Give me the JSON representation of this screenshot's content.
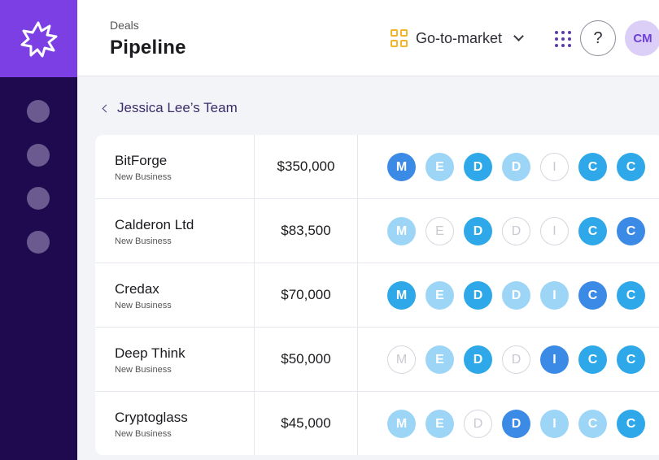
{
  "header": {
    "breadcrumb": "Deals",
    "title": "Pipeline",
    "workspace": "Go-to-market",
    "help_label": "?",
    "avatar_initials": "CM"
  },
  "back_link": {
    "label": "Jessica Lee’s Team"
  },
  "deals": [
    {
      "name": "BitForge",
      "type": "New Business",
      "amount": "$350,000",
      "stages": [
        {
          "letter": "M",
          "state": "dark"
        },
        {
          "letter": "E",
          "state": "light"
        },
        {
          "letter": "D",
          "state": "mid"
        },
        {
          "letter": "D",
          "state": "light"
        },
        {
          "letter": "I",
          "state": "empty"
        },
        {
          "letter": "C",
          "state": "mid"
        },
        {
          "letter": "C",
          "state": "mid"
        }
      ]
    },
    {
      "name": "Calderon Ltd",
      "type": "New Business",
      "amount": "$83,500",
      "stages": [
        {
          "letter": "M",
          "state": "light"
        },
        {
          "letter": "E",
          "state": "empty"
        },
        {
          "letter": "D",
          "state": "mid"
        },
        {
          "letter": "D",
          "state": "empty"
        },
        {
          "letter": "I",
          "state": "empty"
        },
        {
          "letter": "C",
          "state": "mid"
        },
        {
          "letter": "C",
          "state": "dark"
        }
      ]
    },
    {
      "name": "Credax",
      "type": "New Business",
      "amount": "$70,000",
      "stages": [
        {
          "letter": "M",
          "state": "mid"
        },
        {
          "letter": "E",
          "state": "light"
        },
        {
          "letter": "D",
          "state": "mid"
        },
        {
          "letter": "D",
          "state": "light"
        },
        {
          "letter": "I",
          "state": "light"
        },
        {
          "letter": "C",
          "state": "dark"
        },
        {
          "letter": "C",
          "state": "mid"
        }
      ]
    },
    {
      "name": "Deep Think",
      "type": "New Business",
      "amount": "$50,000",
      "stages": [
        {
          "letter": "M",
          "state": "empty"
        },
        {
          "letter": "E",
          "state": "light"
        },
        {
          "letter": "D",
          "state": "mid"
        },
        {
          "letter": "D",
          "state": "empty"
        },
        {
          "letter": "I",
          "state": "dark"
        },
        {
          "letter": "C",
          "state": "mid"
        },
        {
          "letter": "C",
          "state": "mid"
        }
      ]
    },
    {
      "name": "Cryptoglass",
      "type": "New Business",
      "amount": "$45,000",
      "stages": [
        {
          "letter": "M",
          "state": "light"
        },
        {
          "letter": "E",
          "state": "light"
        },
        {
          "letter": "D",
          "state": "empty"
        },
        {
          "letter": "D",
          "state": "dark"
        },
        {
          "letter": "I",
          "state": "light"
        },
        {
          "letter": "C",
          "state": "light"
        },
        {
          "letter": "C",
          "state": "mid"
        }
      ]
    }
  ],
  "colors": {
    "brand_purple": "#7b3fe4",
    "rail_dark": "#1f0a4f",
    "stage_dark": "#3b8ae6",
    "stage_mid": "#2ea8e8",
    "stage_light": "#9dd5f7",
    "workspace_icon": "#f2b52a"
  },
  "icons": {
    "logo": "starburst-logo-icon",
    "workspace": "grid-squares-icon",
    "apps": "apps-grid-icon",
    "back": "chevron-left-icon",
    "dropdown": "chevron-down-icon"
  }
}
